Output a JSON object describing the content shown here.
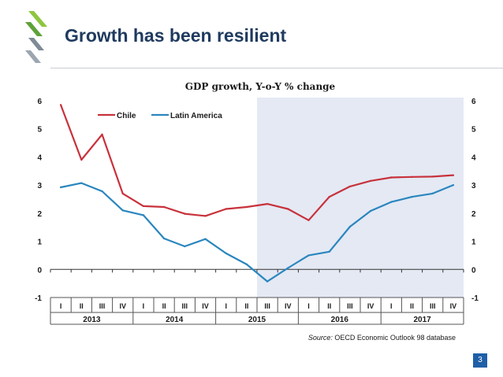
{
  "slide": {
    "title": "Growth has been resilient",
    "page_number": "3",
    "source_prefix": "Source:",
    "source_text": " OECD Economic Outlook 98 database"
  },
  "colors": {
    "title": "#1f3a5f",
    "chile": "#c8323c",
    "latin_america": "#2a86be",
    "projection_shade": "#e4e9f4",
    "logo_green": "#8dc63f",
    "logo_gray": "#7f8b96"
  },
  "chart_data": {
    "type": "line",
    "title": "GDP growth, Y-o-Y % change",
    "xlabel": "",
    "ylabel": "",
    "ylim": [
      -1,
      6
    ],
    "y_ticks": [
      "-1",
      "0",
      "1",
      "2",
      "3",
      "4",
      "5",
      "6"
    ],
    "quarters": [
      "I",
      "II",
      "III",
      "IV",
      "I",
      "II",
      "III",
      "IV",
      "I",
      "II",
      "III",
      "IV",
      "I",
      "II",
      "III",
      "IV",
      "I",
      "II",
      "III",
      "IV"
    ],
    "years": [
      "2013",
      "2014",
      "2015",
      "2016",
      "2017"
    ],
    "shaded_from_index": 10,
    "legend_position": "top-left",
    "series": [
      {
        "name": "Chile",
        "values": [
          5.85,
          3.9,
          4.8,
          2.7,
          2.25,
          2.22,
          1.98,
          1.9,
          2.15,
          2.22,
          2.33,
          2.15,
          1.75,
          2.58,
          2.95,
          3.15,
          3.27,
          3.29,
          3.3,
          3.35
        ]
      },
      {
        "name": "Latin America",
        "values": [
          2.92,
          3.07,
          2.78,
          2.1,
          1.93,
          1.1,
          0.82,
          1.08,
          0.57,
          0.18,
          -0.43,
          0.05,
          0.5,
          0.63,
          1.52,
          2.08,
          2.4,
          2.58,
          2.7,
          3.0
        ]
      }
    ]
  }
}
